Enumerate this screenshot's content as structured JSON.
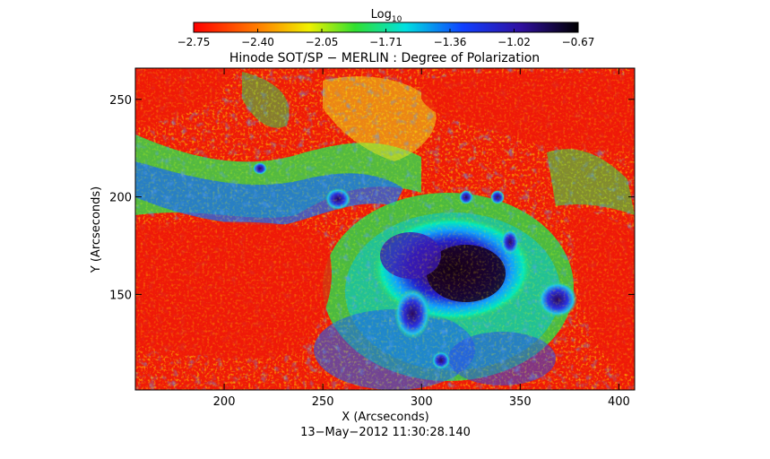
{
  "colorbar": {
    "label_main": "Log",
    "label_sub": "10",
    "ticks": [
      "−2.75",
      "−2.40",
      "−2.05",
      "−1.71",
      "−1.36",
      "−1.02",
      "−0.67"
    ],
    "colormap": "rainbow (red → yellow → green → cyan → blue → black)"
  },
  "plot": {
    "title": "Hinode SOT/SP − MERLIN : Degree of Polarization",
    "xlabel": "X (Arcseconds)",
    "ylabel": "Y (Arcseconds)",
    "xticks": [
      "200",
      "250",
      "300",
      "350",
      "400"
    ],
    "yticks": [
      "250",
      "200",
      "150"
    ],
    "timestamp": "13−May−2012 11:30:28.140"
  }
}
